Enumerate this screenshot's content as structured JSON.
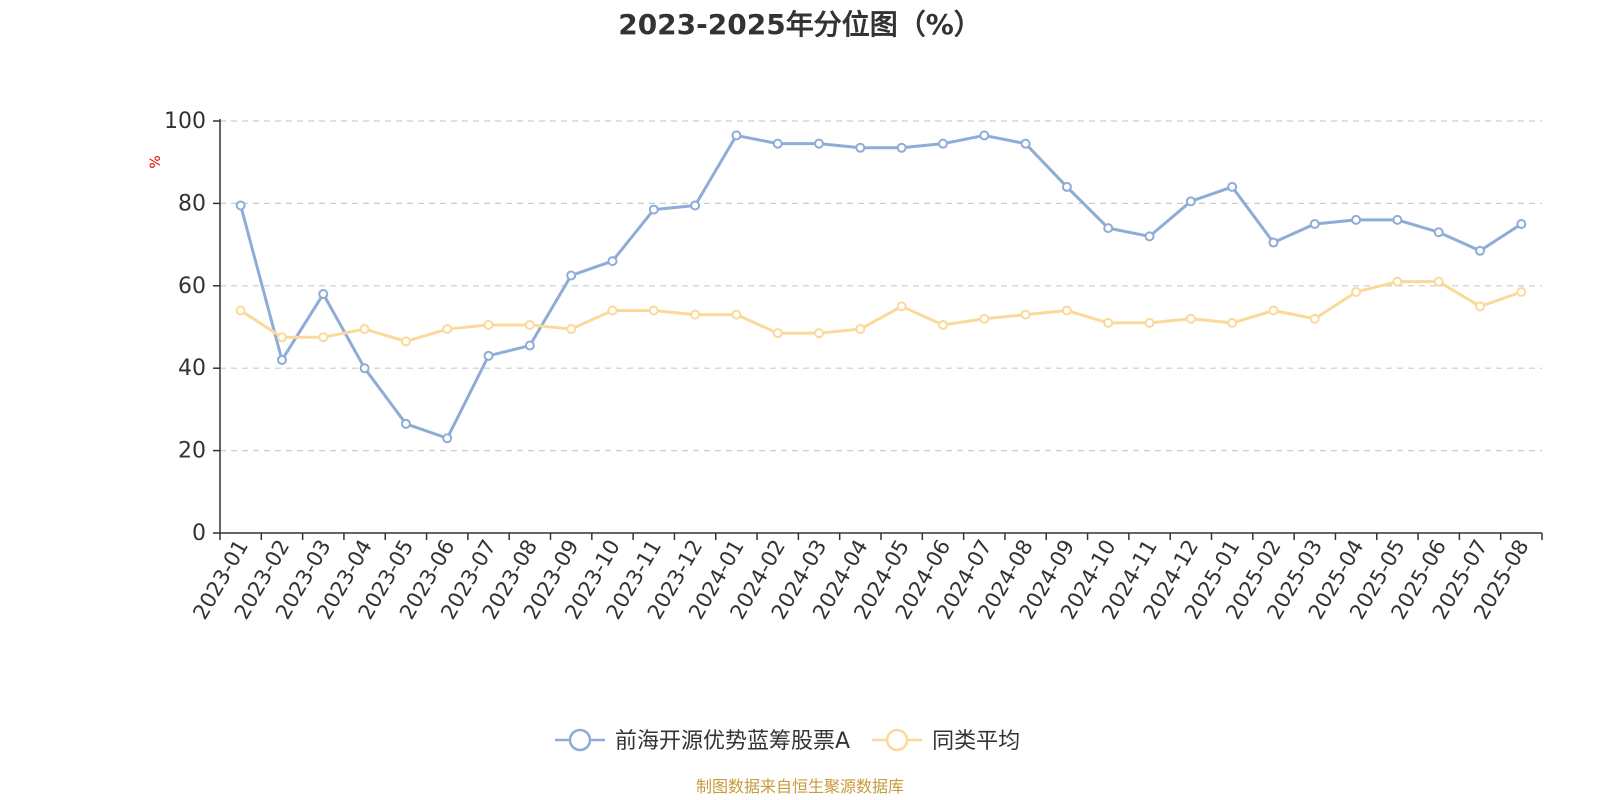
{
  "chart_data": {
    "type": "line",
    "title": "2023-2025年分位图（%）",
    "ylabel": "%",
    "xlabel": "",
    "ylim": [
      0,
      100
    ],
    "yticks": [
      0,
      20,
      40,
      60,
      80,
      100
    ],
    "grid": "horizontal-dashed",
    "legend_position": "bottom",
    "categories": [
      "2023-01",
      "2023-02",
      "2023-03",
      "2023-04",
      "2023-05",
      "2023-06",
      "2023-07",
      "2023-08",
      "2023-09",
      "2023-10",
      "2023-11",
      "2023-12",
      "2024-01",
      "2024-02",
      "2024-03",
      "2024-04",
      "2024-05",
      "2024-06",
      "2024-07",
      "2024-08",
      "2024-09",
      "2024-10",
      "2024-11",
      "2024-12",
      "2025-01",
      "2025-02",
      "2025-03",
      "2025-04",
      "2025-05",
      "2025-06",
      "2025-07",
      "2025-08"
    ],
    "series": [
      {
        "name": "前海开源优势蓝筹股票A",
        "color": "#8eacd8",
        "values": [
          79.5,
          42,
          58,
          40,
          26.5,
          23,
          43,
          45.5,
          62.5,
          66,
          78.5,
          79.5,
          96.5,
          94.5,
          94.5,
          93.5,
          93.5,
          94.5,
          96.5,
          94.5,
          84,
          74,
          72,
          80.5,
          84,
          70.5,
          75,
          76,
          76,
          73,
          68.5,
          75
        ]
      },
      {
        "name": "同类平均",
        "color": "#fbd99a",
        "values": [
          54,
          47.5,
          47.5,
          49.5,
          46.5,
          49.5,
          50.5,
          50.5,
          49.5,
          54,
          54,
          53,
          53,
          48.5,
          48.5,
          49.5,
          55,
          50.5,
          52,
          53,
          54,
          51,
          51,
          52,
          51,
          54,
          52,
          58.5,
          61,
          61,
          55,
          58.5
        ]
      }
    ]
  },
  "source": "制图数据来自恒生聚源数据库"
}
